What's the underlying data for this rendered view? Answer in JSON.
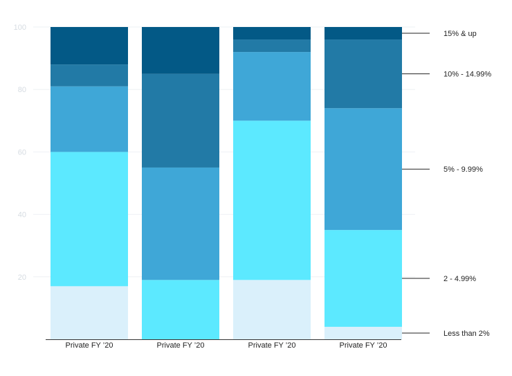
{
  "chart_data": {
    "type": "bar",
    "stacked": true,
    "categories": [
      "Private FY ’20",
      "Private FY ’20",
      "Private FY ’20",
      "Private FY ’20"
    ],
    "series": [
      {
        "name": "Less than 2%",
        "color": "#daf0fb",
        "values": [
          17,
          0,
          19,
          4
        ]
      },
      {
        "name": "2 - 4.99%",
        "color": "#5ce9ff",
        "values": [
          43,
          19,
          51,
          31
        ]
      },
      {
        "name": "5% - 9.99%",
        "color": "#3fa7d7",
        "values": [
          21,
          36,
          22,
          39
        ]
      },
      {
        "name": "10% - 14.99%",
        "color": "#227aa6",
        "values": [
          7,
          30,
          4,
          22
        ]
      },
      {
        "name": "15% & up",
        "color": "#035986",
        "values": [
          12,
          15,
          4,
          4
        ]
      }
    ],
    "y_ticks": [
      20,
      40,
      60,
      80,
      100
    ],
    "ylim": [
      0,
      100
    ],
    "grid": true,
    "legend_placement": "right, labels aligned to last bar segments",
    "title": "",
    "xlabel": "",
    "ylabel": ""
  }
}
